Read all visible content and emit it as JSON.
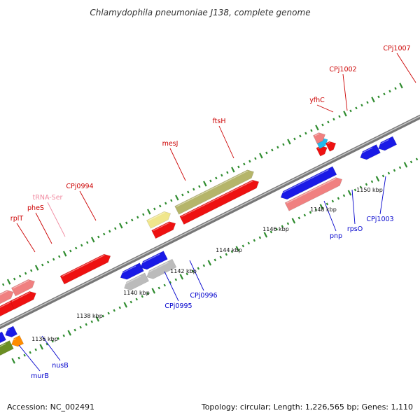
{
  "title": "Chlamydophila pneumoniae J138, complete genome",
  "footer": {
    "accession": "Accession: NC_002491",
    "summary": "Topology: circular; Length: 1,226,565 bp; Genes: 1,110"
  },
  "scale_labels": [
    "1136 kbp",
    "1138 kbp",
    "1140 kbp",
    "1142 kbp",
    "1144 kbp",
    "1146 kbp",
    "1148 kbp",
    "1150 kbp"
  ],
  "gene_labels": {
    "forward": [
      "rplT",
      "pheS",
      "tRNA-Ser",
      "CPj0994",
      "mesJ",
      "ftsH",
      "yfhC",
      "CPj1002",
      "CPj1007"
    ],
    "reverse": [
      "murB",
      "nusB",
      "CPj0995",
      "CPj0996",
      "pnp",
      "rpsO",
      "CPj1003"
    ]
  },
  "colors": {
    "forward_label": "#cc0000",
    "trna_label": "#f08aa0",
    "reverse_label": "#0000cc",
    "tick": "#2e8b2e",
    "backbone": "#888888",
    "forward_gene": "#ee1111",
    "forward_light": "#f08080",
    "reverse_gene": "#1a1ae6",
    "pseudo_gene": "#bbbbbb",
    "rna_gene": "#f0e68c",
    "olive_gene": "#b5b56a",
    "cyan_gene": "#22bbee",
    "orange_gene": "#ff8c00",
    "green_gene": "#6b8e23"
  }
}
